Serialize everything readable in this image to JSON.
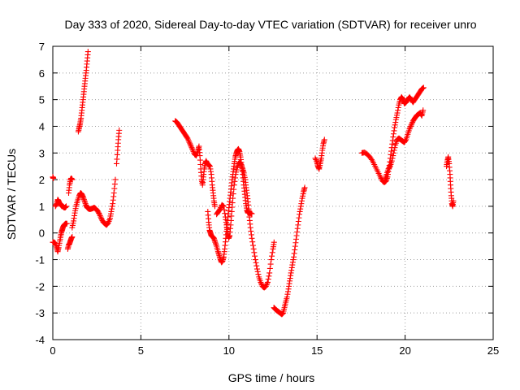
{
  "chart_data": {
    "type": "scatter",
    "title": "Day 333 of 2020, Sidereal Day-to-day VTEC variation (SDTVAR) for receiver unro",
    "xlabel": "GPS time / hours",
    "ylabel": "SDTVAR / TECUs",
    "xlim": [
      0,
      25
    ],
    "ylim": [
      -4,
      7
    ],
    "xticks": [
      "0",
      "5",
      "10",
      "15",
      "20",
      "25"
    ],
    "yticks": [
      "-4",
      "-3",
      "-2",
      "-1",
      "0",
      "1",
      "2",
      "3",
      "4",
      "5",
      "6",
      "7"
    ],
    "grid": true,
    "marker": "+",
    "color": "#ff0000",
    "series": [
      {
        "name": "SDTVAR",
        "points": [
          [
            0.0,
            2.1
          ],
          [
            0.03,
            2.05
          ],
          [
            0.0,
            -0.35
          ],
          [
            0.08,
            -0.35
          ],
          [
            0.15,
            -0.4
          ],
          [
            0.22,
            -0.55
          ],
          [
            0.28,
            -0.7
          ],
          [
            0.33,
            -0.55
          ],
          [
            0.4,
            -0.3
          ],
          [
            0.45,
            -0.1
          ],
          [
            0.5,
            0.05
          ],
          [
            0.55,
            0.15
          ],
          [
            0.6,
            0.25
          ],
          [
            0.65,
            0.3
          ],
          [
            0.72,
            0.35
          ],
          [
            0.8,
            0.35
          ],
          [
            0.15,
            1.0
          ],
          [
            0.22,
            1.1
          ],
          [
            0.28,
            1.25
          ],
          [
            0.33,
            1.2
          ],
          [
            0.4,
            1.1
          ],
          [
            0.46,
            1.05
          ],
          [
            0.52,
            1.0
          ],
          [
            0.58,
            1.0
          ],
          [
            0.64,
            0.95
          ],
          [
            0.7,
            0.95
          ],
          [
            0.76,
            1.0
          ],
          [
            0.85,
            -0.6
          ],
          [
            0.9,
            -0.45
          ],
          [
            0.95,
            -0.4
          ],
          [
            1.0,
            -0.3
          ],
          [
            1.05,
            -0.2
          ],
          [
            1.1,
            -0.15
          ],
          [
            0.9,
            1.5
          ],
          [
            0.95,
            1.8
          ],
          [
            1.0,
            2.0
          ],
          [
            1.05,
            2.05
          ],
          [
            1.1,
            2.0
          ],
          [
            1.1,
            0.2
          ],
          [
            1.18,
            0.45
          ],
          [
            1.25,
            0.75
          ],
          [
            1.32,
            1.0
          ],
          [
            1.4,
            1.2
          ],
          [
            1.5,
            1.4
          ],
          [
            1.58,
            1.5
          ],
          [
            1.65,
            1.45
          ],
          [
            1.72,
            1.35
          ],
          [
            1.8,
            1.2
          ],
          [
            1.88,
            1.05
          ],
          [
            1.95,
            0.95
          ],
          [
            2.05,
            0.9
          ],
          [
            2.15,
            0.9
          ],
          [
            2.25,
            0.92
          ],
          [
            2.35,
            0.95
          ],
          [
            2.45,
            0.9
          ],
          [
            2.55,
            0.82
          ],
          [
            2.65,
            0.7
          ],
          [
            2.75,
            0.55
          ],
          [
            2.85,
            0.42
          ],
          [
            2.95,
            0.35
          ],
          [
            3.05,
            0.3
          ],
          [
            3.15,
            0.38
          ],
          [
            3.25,
            0.55
          ],
          [
            3.32,
            0.8
          ],
          [
            3.4,
            1.1
          ],
          [
            3.47,
            1.5
          ],
          [
            3.55,
            2.0
          ],
          [
            3.62,
            2.6
          ],
          [
            3.68,
            3.1
          ],
          [
            3.72,
            3.5
          ],
          [
            3.77,
            3.85
          ],
          [
            1.45,
            3.8
          ],
          [
            1.5,
            3.95
          ],
          [
            1.55,
            4.1
          ],
          [
            1.6,
            4.3
          ],
          [
            1.65,
            4.6
          ],
          [
            1.7,
            4.9
          ],
          [
            1.75,
            5.2
          ],
          [
            1.8,
            5.5
          ],
          [
            1.85,
            5.8
          ],
          [
            1.9,
            6.1
          ],
          [
            1.95,
            6.45
          ],
          [
            2.0,
            6.8
          ],
          [
            6.95,
            4.2
          ],
          [
            7.05,
            4.15
          ],
          [
            7.15,
            4.05
          ],
          [
            7.25,
            3.95
          ],
          [
            7.35,
            3.85
          ],
          [
            7.45,
            3.75
          ],
          [
            7.55,
            3.65
          ],
          [
            7.65,
            3.55
          ],
          [
            7.75,
            3.4
          ],
          [
            7.85,
            3.25
          ],
          [
            7.95,
            3.1
          ],
          [
            8.05,
            2.95
          ],
          [
            8.15,
            2.9
          ],
          [
            8.25,
            3.1
          ],
          [
            8.3,
            3.25
          ],
          [
            8.35,
            2.9
          ],
          [
            8.4,
            2.4
          ],
          [
            8.45,
            2.0
          ],
          [
            8.5,
            1.8
          ],
          [
            8.55,
            2.1
          ],
          [
            8.6,
            2.4
          ],
          [
            8.65,
            2.6
          ],
          [
            8.7,
            2.7
          ],
          [
            8.78,
            2.6
          ],
          [
            8.85,
            2.55
          ],
          [
            8.92,
            2.5
          ],
          [
            9.0,
            2.2
          ],
          [
            9.05,
            1.8
          ],
          [
            9.1,
            1.5
          ],
          [
            9.15,
            1.2
          ],
          [
            9.2,
            1.0
          ],
          [
            8.8,
            0.8
          ],
          [
            8.85,
            0.4
          ],
          [
            8.9,
            0.1
          ],
          [
            8.95,
            0.0
          ],
          [
            9.0,
            -0.1
          ],
          [
            9.08,
            -0.15
          ],
          [
            9.15,
            -0.2
          ],
          [
            9.22,
            -0.35
          ],
          [
            9.3,
            -0.5
          ],
          [
            9.38,
            -0.7
          ],
          [
            9.45,
            -0.85
          ],
          [
            9.52,
            -1.0
          ],
          [
            9.58,
            -1.1
          ],
          [
            9.64,
            -1.05
          ],
          [
            9.7,
            -0.9
          ],
          [
            9.76,
            -0.6
          ],
          [
            9.82,
            -0.2
          ],
          [
            9.88,
            0.2
          ],
          [
            9.94,
            0.6
          ],
          [
            10.0,
            0.95
          ],
          [
            10.06,
            1.3
          ],
          [
            10.12,
            1.65
          ],
          [
            10.18,
            2.0
          ],
          [
            10.24,
            2.3
          ],
          [
            10.3,
            2.6
          ],
          [
            10.36,
            2.85
          ],
          [
            10.42,
            3.0
          ],
          [
            10.48,
            3.1
          ],
          [
            10.54,
            3.15
          ],
          [
            10.6,
            3.05
          ],
          [
            10.66,
            2.85
          ],
          [
            10.72,
            2.55
          ],
          [
            10.78,
            2.2
          ],
          [
            10.84,
            1.8
          ],
          [
            10.9,
            1.45
          ],
          [
            10.96,
            1.1
          ],
          [
            11.02,
            0.85
          ],
          [
            11.08,
            0.75
          ],
          [
            11.15,
            0.75
          ],
          [
            11.22,
            0.75
          ],
          [
            11.3,
            0.72
          ],
          [
            9.3,
            0.7
          ],
          [
            9.4,
            0.8
          ],
          [
            9.5,
            0.9
          ],
          [
            9.6,
            1.05
          ],
          [
            9.7,
            1.0
          ],
          [
            9.8,
            0.6
          ],
          [
            9.86,
            0.3
          ],
          [
            9.92,
            0.05
          ],
          [
            9.98,
            -0.2
          ],
          [
            10.04,
            -0.1
          ],
          [
            10.1,
            0.3
          ],
          [
            10.16,
            0.8
          ],
          [
            10.22,
            1.3
          ],
          [
            10.3,
            1.8
          ],
          [
            10.38,
            2.2
          ],
          [
            10.46,
            2.45
          ],
          [
            10.54,
            2.6
          ],
          [
            10.62,
            2.65
          ],
          [
            10.7,
            2.55
          ],
          [
            10.78,
            2.4
          ],
          [
            10.85,
            2.25
          ],
          [
            10.92,
            2.0
          ],
          [
            10.98,
            1.7
          ],
          [
            11.04,
            1.4
          ],
          [
            11.1,
            1.05
          ],
          [
            11.16,
            0.6
          ],
          [
            11.22,
            0.2
          ],
          [
            11.3,
            -0.2
          ],
          [
            11.4,
            -0.6
          ],
          [
            11.5,
            -1.0
          ],
          [
            11.6,
            -1.35
          ],
          [
            11.7,
            -1.65
          ],
          [
            11.8,
            -1.85
          ],
          [
            11.9,
            -2.0
          ],
          [
            12.0,
            -2.05
          ],
          [
            12.1,
            -2.0
          ],
          [
            12.2,
            -1.85
          ],
          [
            12.3,
            -1.5
          ],
          [
            12.4,
            -1.0
          ],
          [
            12.5,
            -0.6
          ],
          [
            12.56,
            -0.35
          ],
          [
            12.55,
            -2.8
          ],
          [
            12.62,
            -2.85
          ],
          [
            12.7,
            -2.9
          ],
          [
            12.8,
            -2.95
          ],
          [
            12.9,
            -3.0
          ],
          [
            13.0,
            -3.05
          ],
          [
            13.08,
            -3.0
          ],
          [
            13.15,
            -2.8
          ],
          [
            13.22,
            -2.6
          ],
          [
            13.3,
            -2.4
          ],
          [
            13.38,
            -2.1
          ],
          [
            13.45,
            -1.8
          ],
          [
            13.52,
            -1.5
          ],
          [
            13.6,
            -1.2
          ],
          [
            13.68,
            -0.9
          ],
          [
            13.76,
            -0.5
          ],
          [
            13.84,
            -0.1
          ],
          [
            13.92,
            0.3
          ],
          [
            14.0,
            0.7
          ],
          [
            14.08,
            1.0
          ],
          [
            14.16,
            1.3
          ],
          [
            14.24,
            1.55
          ],
          [
            14.3,
            1.7
          ],
          [
            14.9,
            2.8
          ],
          [
            15.0,
            2.65
          ],
          [
            15.05,
            2.5
          ],
          [
            15.12,
            2.4
          ],
          [
            15.18,
            2.6
          ],
          [
            15.24,
            2.8
          ],
          [
            15.3,
            3.1
          ],
          [
            15.36,
            3.35
          ],
          [
            15.42,
            3.5
          ],
          [
            17.55,
            3.0
          ],
          [
            17.7,
            3.02
          ],
          [
            17.85,
            2.95
          ],
          [
            18.0,
            2.85
          ],
          [
            18.15,
            2.7
          ],
          [
            18.3,
            2.5
          ],
          [
            18.45,
            2.3
          ],
          [
            18.6,
            2.1
          ],
          [
            18.72,
            1.95
          ],
          [
            18.82,
            1.9
          ],
          [
            18.92,
            1.95
          ],
          [
            19.0,
            2.1
          ],
          [
            19.08,
            2.4
          ],
          [
            19.16,
            2.8
          ],
          [
            19.24,
            3.2
          ],
          [
            19.32,
            3.6
          ],
          [
            19.4,
            3.95
          ],
          [
            19.48,
            4.25
          ],
          [
            19.56,
            4.5
          ],
          [
            19.64,
            4.8
          ],
          [
            19.72,
            5.0
          ],
          [
            19.8,
            5.1
          ],
          [
            19.88,
            5.0
          ],
          [
            19.96,
            4.85
          ],
          [
            20.05,
            4.9
          ],
          [
            20.15,
            5.0
          ],
          [
            20.25,
            5.1
          ],
          [
            20.35,
            5.0
          ],
          [
            20.45,
            4.9
          ],
          [
            20.55,
            5.0
          ],
          [
            20.65,
            5.1
          ],
          [
            20.75,
            5.2
          ],
          [
            20.85,
            5.3
          ],
          [
            20.95,
            5.4
          ],
          [
            21.05,
            5.45
          ],
          [
            18.85,
            2.0
          ],
          [
            18.95,
            2.2
          ],
          [
            19.05,
            2.4
          ],
          [
            19.15,
            2.5
          ],
          [
            19.25,
            2.7
          ],
          [
            19.35,
            3.0
          ],
          [
            19.45,
            3.3
          ],
          [
            19.55,
            3.5
          ],
          [
            19.65,
            3.55
          ],
          [
            19.75,
            3.5
          ],
          [
            19.85,
            3.45
          ],
          [
            19.95,
            3.4
          ],
          [
            20.05,
            3.5
          ],
          [
            20.15,
            3.7
          ],
          [
            20.25,
            3.9
          ],
          [
            20.35,
            4.05
          ],
          [
            20.45,
            4.2
          ],
          [
            20.55,
            4.3
          ],
          [
            20.65,
            4.4
          ],
          [
            20.75,
            4.45
          ],
          [
            20.85,
            4.5
          ],
          [
            20.95,
            4.4
          ],
          [
            21.02,
            4.6
          ],
          [
            22.35,
            2.5
          ],
          [
            22.4,
            2.7
          ],
          [
            22.45,
            2.85
          ],
          [
            22.5,
            2.6
          ],
          [
            22.55,
            2.2
          ],
          [
            22.58,
            1.8
          ],
          [
            22.62,
            1.4
          ],
          [
            22.66,
            1.1
          ],
          [
            22.7,
            1.0
          ],
          [
            22.74,
            1.2
          ]
        ]
      }
    ]
  }
}
